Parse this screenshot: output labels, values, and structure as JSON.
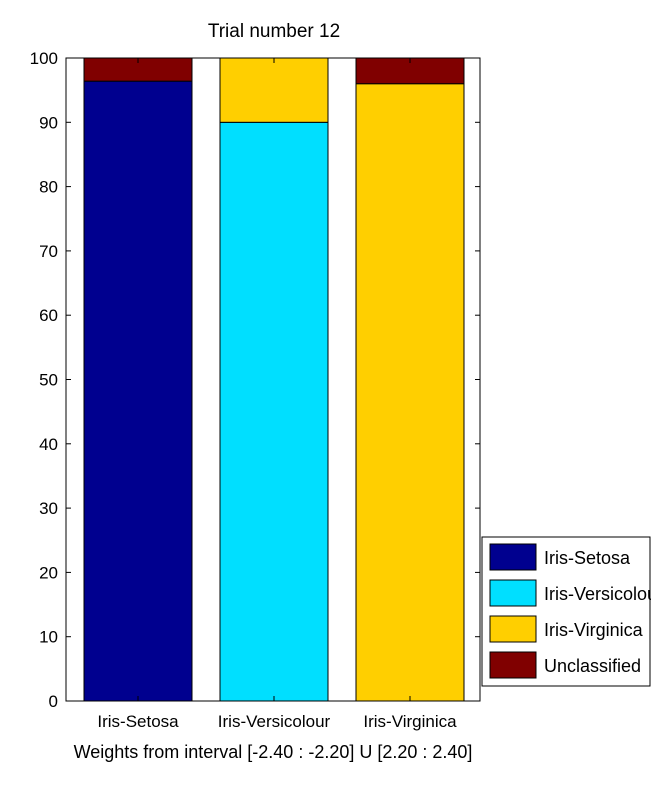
{
  "chart_data": {
    "type": "bar",
    "stacked": true,
    "title": "Trial number 12",
    "xlabel": "Weights from interval [-2.40 : -2.20] U [2.20 : 2.40]",
    "ylabel": "",
    "ylim": [
      0,
      100
    ],
    "yticks": [
      "0",
      "10",
      "20",
      "30",
      "40",
      "50",
      "60",
      "70",
      "80",
      "90",
      "100"
    ],
    "categories": [
      "Iris-Setosa",
      "Iris-Versicolour",
      "Iris-Virginica"
    ],
    "series": [
      {
        "name": "Iris-Setosa",
        "color": "#00008f",
        "values": [
          96.4,
          0,
          0
        ]
      },
      {
        "name": "Iris-Versicolour",
        "color": "#00dfff",
        "values": [
          0,
          90.0,
          0
        ]
      },
      {
        "name": "Iris-Virginica",
        "color": "#ffcf00",
        "values": [
          0,
          10.0,
          96.0
        ]
      },
      {
        "name": "Unclassified",
        "color": "#800000",
        "values": [
          3.6,
          0,
          4.0
        ]
      }
    ],
    "grid": false,
    "legend_position": "bottom-right-outside"
  }
}
